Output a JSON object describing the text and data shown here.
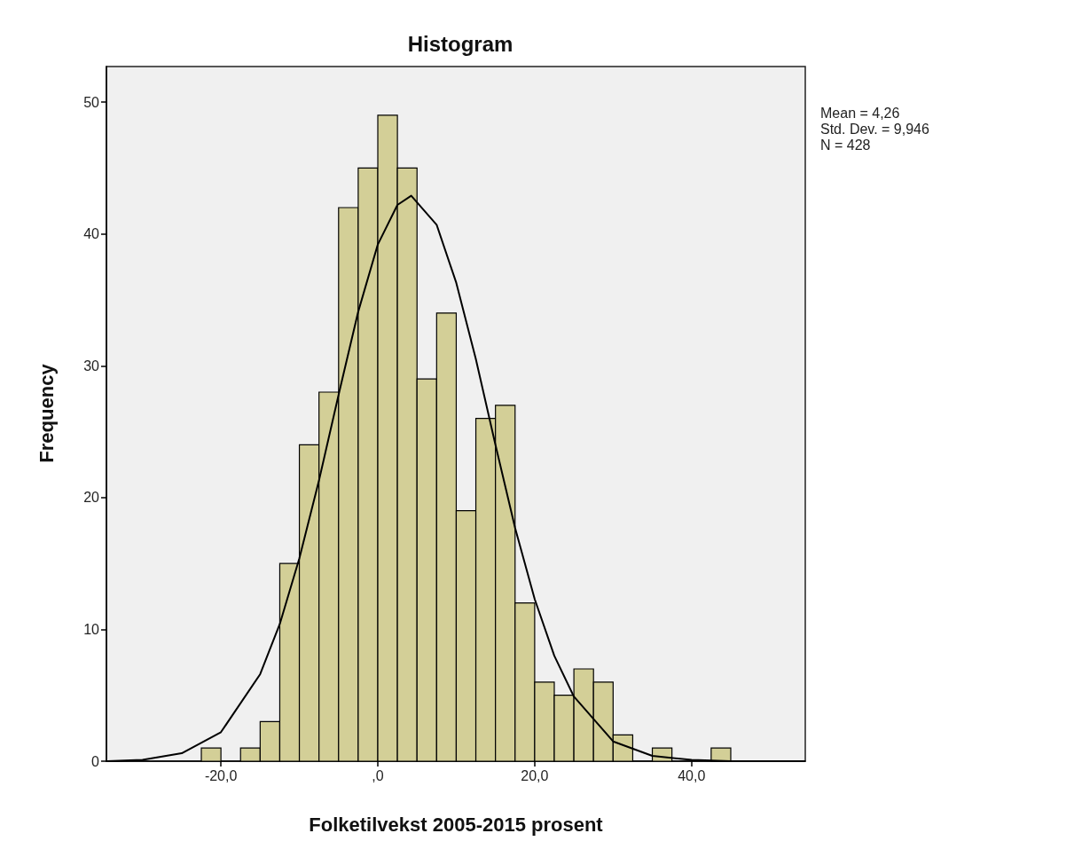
{
  "chart_data": {
    "type": "histogram",
    "title": "Histogram",
    "xlabel": "Folketilvekst 2005-2015 prosent",
    "ylabel": "Frequency",
    "annotations": [
      "Mean = 4,26",
      "Std. Dev. = 9,946",
      "N = 428"
    ],
    "series": [
      {
        "type": "histogram",
        "color": "#d3cf97",
        "bins": [
          -22.5,
          -20,
          -17.5,
          -15,
          -12.5,
          -10,
          -7.5,
          -5,
          -2.5,
          0,
          2.5,
          5,
          7.5,
          10,
          12.5,
          15,
          17.5,
          20,
          22.5,
          25,
          27.5,
          30,
          32.5,
          35,
          37.5,
          40,
          42.5,
          45
        ],
        "values": [
          1,
          0,
          1,
          3,
          15,
          24,
          28,
          42,
          45,
          49,
          45,
          29,
          34,
          19,
          26,
          27,
          12,
          6,
          5,
          7,
          6,
          2,
          0,
          1,
          0,
          0,
          1
        ]
      },
      {
        "type": "line",
        "color": "#000000",
        "x": [
          -34.5,
          -30,
          -25,
          -20,
          -15,
          -12.5,
          -10,
          -7.5,
          -5,
          -2.5,
          0,
          2.5,
          4.26,
          7.5,
          10,
          12.5,
          15,
          17.5,
          20,
          22.5,
          25,
          30,
          35,
          40,
          45,
          54.5
        ],
        "values": [
          0,
          0.1,
          0.6,
          2.2,
          6.6,
          10.4,
          15.4,
          21.3,
          27.8,
          34.1,
          39.2,
          42.2,
          42.9,
          40.7,
          36.3,
          30.5,
          24,
          17.7,
          12.3,
          8,
          4.9,
          1.5,
          0.4,
          0.1,
          0,
          0
        ]
      }
    ],
    "xlim": [
      -34.6,
      54.5
    ],
    "xticks": [
      {
        "value": -20,
        "label": "-20,0"
      },
      {
        "value": 0,
        "label": ",0"
      },
      {
        "value": 20,
        "label": "20,0"
      },
      {
        "value": 40,
        "label": "40,0"
      }
    ],
    "ylim": [
      0,
      52.7
    ],
    "yticks": [
      0,
      10,
      20,
      30,
      40,
      50
    ],
    "grid": false,
    "marker": "none",
    "line_style": "solid"
  }
}
